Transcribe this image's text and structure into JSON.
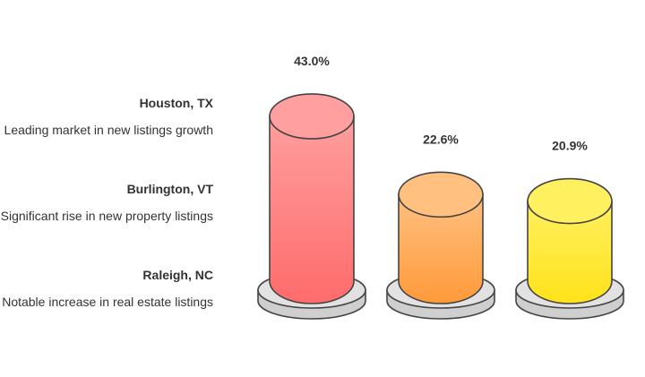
{
  "chart_data": {
    "type": "bar",
    "categories": [
      "Houston, TX",
      "Burlington, VT",
      "Raleigh, NC"
    ],
    "values": [
      43.0,
      22.6,
      20.9
    ],
    "value_labels": [
      "43.0%",
      "22.6%",
      "20.9%"
    ],
    "descriptions": [
      "Leading market in new listings growth",
      "Significant rise in new property listings",
      "Notable increase in real estate listings"
    ],
    "style": "3d-cylinder",
    "colors": [
      {
        "top": "#ff9f9f",
        "bottom": "#ff6b6b"
      },
      {
        "top": "#ffc080",
        "bottom": "#ff9a3a"
      },
      {
        "top": "#fff060",
        "bottom": "#ffe21a"
      }
    ],
    "grid": false,
    "legend": "left"
  }
}
